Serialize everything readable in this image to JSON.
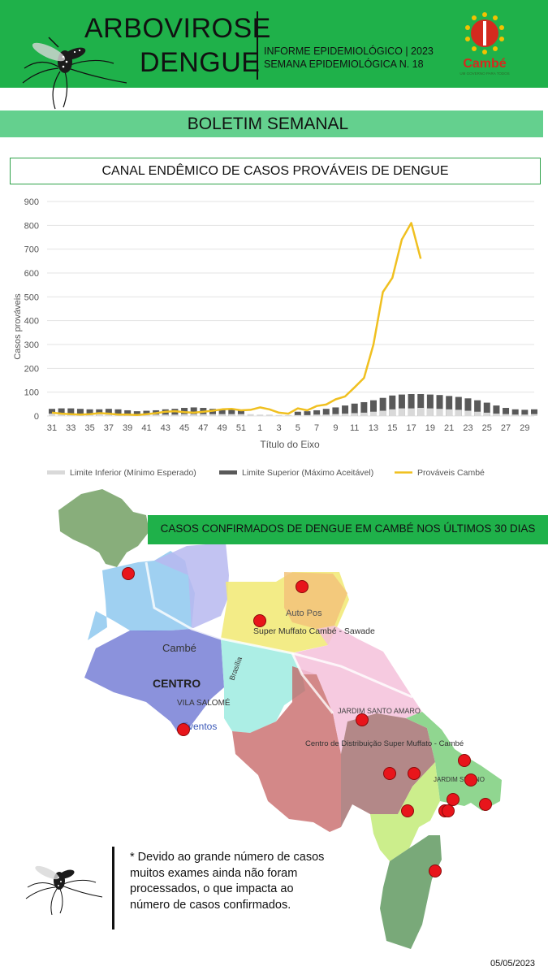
{
  "header": {
    "title_line1": "ARBOVIROSE",
    "title_line2": "DENGUE",
    "info_line1": "INFORME EPIDEMIOLÓGICO | 2023",
    "info_line2": "SEMANA EPIDEMIOLÓGICA  N. 18",
    "logo_name": "Cambé",
    "logo_tagline": "UM GOVERNO PARA TODOS",
    "icon": "mosquito-icon"
  },
  "banner": {
    "title": "BOLETIM SEMANAL"
  },
  "chart_title": "CANAL ENDÊMICO DE CASOS PROVÁVEIS DE DENGUE",
  "chart_data": {
    "type": "line",
    "title": "CANAL ENDÊMICO DE CASOS PROVÁVEIS DE DENGUE",
    "xlabel": "Título do Eixo",
    "ylabel": "Casos prováveis",
    "ylim": [
      0,
      900
    ],
    "yticks": [
      0,
      100,
      200,
      300,
      400,
      500,
      600,
      700,
      800,
      900
    ],
    "grid": true,
    "legend_position": "bottom",
    "x_tick_labels": [
      "31",
      "33",
      "35",
      "37",
      "39",
      "41",
      "43",
      "45",
      "47",
      "49",
      "51",
      "1",
      "3",
      "5",
      "7",
      "9",
      "11",
      "13",
      "15",
      "17",
      "19",
      "21",
      "23",
      "25",
      "27",
      "29"
    ],
    "categories": [
      "31",
      "32",
      "33",
      "34",
      "35",
      "36",
      "37",
      "38",
      "39",
      "40",
      "41",
      "42",
      "43",
      "44",
      "45",
      "46",
      "47",
      "48",
      "49",
      "50",
      "51",
      "52",
      "1",
      "2",
      "3",
      "4",
      "5",
      "6",
      "7",
      "8",
      "9",
      "10",
      "11",
      "12",
      "13",
      "14",
      "15",
      "16",
      "17",
      "18",
      "19",
      "20",
      "21",
      "22",
      "23",
      "24",
      "25",
      "26",
      "27",
      "28",
      "29",
      "30"
    ],
    "series": [
      {
        "name": "Limite Inferior (Mínimo Esperado)",
        "kind": "bar",
        "color": "#d9d9d9",
        "values": [
          10,
          10,
          10,
          10,
          10,
          10,
          10,
          8,
          8,
          6,
          6,
          6,
          6,
          6,
          8,
          8,
          8,
          8,
          8,
          8,
          8,
          8,
          6,
          6,
          4,
          4,
          4,
          4,
          6,
          6,
          8,
          10,
          12,
          14,
          18,
          22,
          28,
          32,
          32,
          34,
          32,
          30,
          28,
          26,
          22,
          18,
          14,
          10,
          8,
          6,
          6,
          8
        ]
      },
      {
        "name": "Limite Superior (Máximo Aceitável)",
        "kind": "bar",
        "color": "#595959",
        "values": [
          30,
          32,
          32,
          30,
          28,
          28,
          30,
          28,
          24,
          20,
          22,
          24,
          28,
          30,
          34,
          36,
          34,
          30,
          28,
          26,
          24,
          0,
          0,
          0,
          0,
          0,
          18,
          20,
          24,
          30,
          36,
          44,
          52,
          58,
          66,
          76,
          86,
          90,
          92,
          92,
          90,
          88,
          84,
          80,
          74,
          66,
          56,
          44,
          34,
          28,
          26,
          28
        ]
      },
      {
        "name": "Prováveis Cambé",
        "kind": "line",
        "color": "#f0c020",
        "values": [
          14,
          10,
          8,
          6,
          8,
          12,
          10,
          6,
          6,
          4,
          8,
          12,
          18,
          20,
          16,
          14,
          18,
          22,
          28,
          30,
          24,
          26,
          36,
          28,
          14,
          10,
          32,
          24,
          42,
          48,
          70,
          82,
          120,
          160,
          300,
          520,
          580,
          740,
          810,
          660,
          null,
          null,
          null,
          null,
          null,
          null,
          null,
          null,
          null,
          null,
          null,
          null
        ]
      }
    ]
  },
  "map": {
    "title": "CASOS CONFIRMADOS DE DENGUE EM CAMBÉ NOS ÚLTIMOS 30 DIAS",
    "labels": [
      "Cambé",
      "CENTRO",
      "VILA SALOMÉ",
      "Super Muffato Cambé - Sawade",
      "Auto Pos",
      "JARDIM SANTO AMARO",
      "Centro de Distribuição Super Muffato - Cambé",
      "JARDIM SILVINO",
      "Brasília",
      "Eventos"
    ],
    "confirmed_cases_markers": 17
  },
  "note": "* Devido ao grande número  de casos muitos exames ainda não foram processados, o que impacta ao número de casos confirmados.",
  "footer": {
    "date": "05/05/2023"
  },
  "colors": {
    "header_green": "#1fb14a",
    "banner_green": "#64d08e",
    "series_line": "#f0c020",
    "marker_red": "#e8151b"
  }
}
